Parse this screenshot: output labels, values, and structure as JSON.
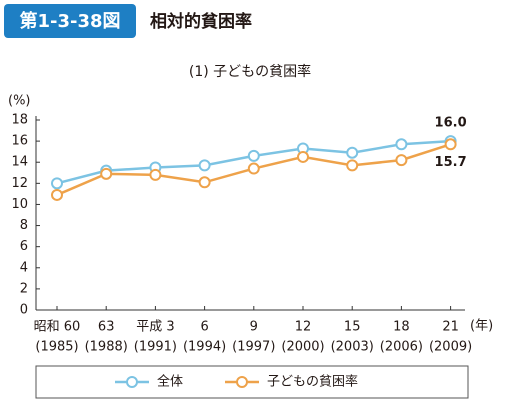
{
  "header": {
    "badge": "第1-3-38図",
    "title": "相対的貧困率"
  },
  "chart_data": {
    "type": "line",
    "title": "(1) 子どもの貧困率",
    "y_unit": "(%)",
    "x_unit": "(年)",
    "categories": [
      "昭和 60",
      "63",
      "平成 3",
      "6",
      "9",
      "12",
      "15",
      "18",
      "21"
    ],
    "category_years": [
      "(1985)",
      "(1988)",
      "(1991)",
      "(1994)",
      "(1997)",
      "(2000)",
      "(2003)",
      "(2006)",
      "(2009)"
    ],
    "series": [
      {
        "name": "全体",
        "color": "#7cc3e3",
        "values": [
          12.0,
          13.2,
          13.5,
          13.7,
          14.6,
          15.3,
          14.9,
          15.7,
          16.0
        ],
        "value_labels": [
          null,
          null,
          null,
          null,
          null,
          null,
          null,
          null,
          "16.0"
        ]
      },
      {
        "name": "子どもの貧困率",
        "color": "#eea24a",
        "values": [
          10.9,
          12.9,
          12.8,
          12.1,
          13.4,
          14.5,
          13.7,
          14.2,
          15.7
        ],
        "value_labels": [
          null,
          null,
          null,
          null,
          null,
          null,
          null,
          null,
          "15.7"
        ]
      }
    ],
    "ylim": [
      0,
      18
    ],
    "yticks": [
      0,
      2,
      4,
      6,
      8,
      10,
      12,
      14,
      16,
      18
    ],
    "grid": false
  }
}
